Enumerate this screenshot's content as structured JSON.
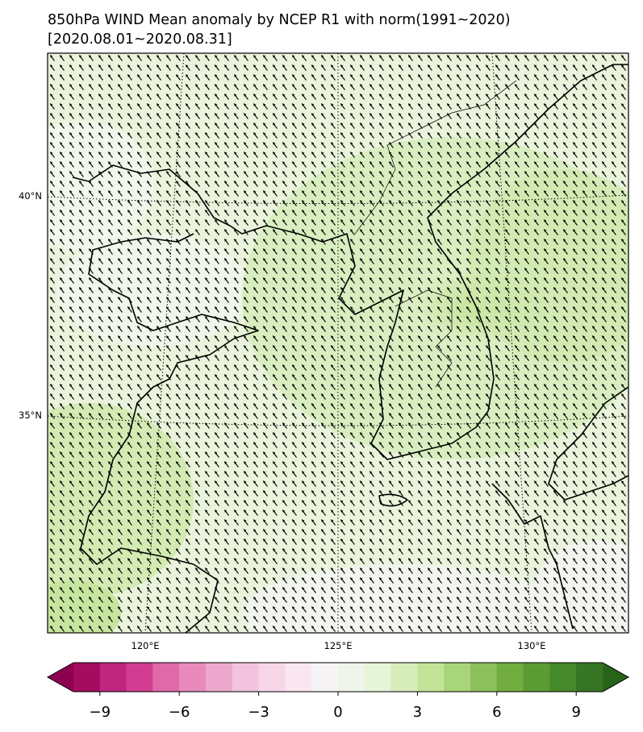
{
  "title": "850hPa WIND Mean anomaly by NCEP R1 with norm(1991~2020)",
  "subtitle": "[2020.08.01~2020.08.31]",
  "map": {
    "lat_labels": [
      "40°N",
      "35°N"
    ],
    "lon_labels": [
      "120°E",
      "125°E",
      "130°E"
    ]
  },
  "colorbar": {
    "range": [
      -10,
      10
    ],
    "ticks": [
      {
        "value": -9,
        "label": "−9"
      },
      {
        "value": -6,
        "label": "−6"
      },
      {
        "value": -3,
        "label": "−3"
      },
      0,
      3,
      6,
      9
    ],
    "colors": [
      "#8e0152",
      "#a50b5e",
      "#c0267e",
      "#d23d91",
      "#de6aa9",
      "#e88bbc",
      "#eca8cc",
      "#f3c3dd",
      "#f7d6e8",
      "#fae6f0",
      "#f7f4f5",
      "#f0f5ea",
      "#e6f4d7",
      "#d6ecbb",
      "#c3e498",
      "#a8d57a",
      "#8cc05a",
      "#72ad42",
      "#5c9b34",
      "#468a2b",
      "#357523",
      "#276419"
    ]
  }
}
